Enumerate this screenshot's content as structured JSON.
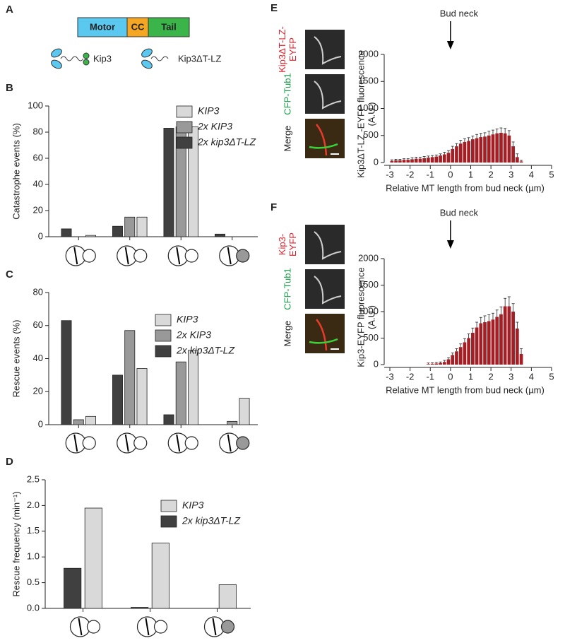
{
  "figure_a": {
    "panel": "A",
    "domains": [
      {
        "label": "Motor",
        "color": "#5bc8f0"
      },
      {
        "label": "CC",
        "color": "#f5a623"
      },
      {
        "label": "Tail",
        "color": "#3bb54a"
      }
    ],
    "constructs": [
      "Kip3",
      "Kip3ΔT-LZ"
    ]
  },
  "micrographs": [
    {
      "labels": [
        {
          "lines": [
            "Kip3ΔT-LZ-",
            "EYFP"
          ],
          "color": "#e0202a"
        },
        {
          "lines": [
            "CFP-Tub1"
          ],
          "color": "#1aa04a"
        },
        {
          "lines": [
            "Merge"
          ],
          "color": "#222222"
        }
      ]
    },
    {
      "labels": [
        {
          "lines": [
            "Kip3-",
            "EYFP"
          ],
          "color": "#e0202a"
        },
        {
          "lines": [
            "CFP-Tub1"
          ],
          "color": "#1aa04a"
        },
        {
          "lines": [
            "Merge"
          ],
          "color": "#222222"
        }
      ]
    }
  ],
  "chart_data": [
    {
      "type": "bar",
      "panel": "B",
      "ylabel": "Catastrophe events (%)",
      "categories": [
        null,
        null,
        null,
        null
      ],
      "series": [
        {
          "name": "KIP3",
          "color": "#d9d9d9",
          "values": [
            1,
            15,
            84,
            0
          ]
        },
        {
          "name": "2x KIP3",
          "color": "#999999",
          "values": [
            0,
            15,
            84,
            0
          ]
        },
        {
          "name": "2x kip3ΔT-LZ",
          "color": "#404040",
          "values": [
            6,
            8,
            83,
            2
          ]
        }
      ],
      "ylim": [
        0,
        100
      ],
      "yticks": [
        0,
        20,
        40,
        60,
        80,
        100
      ],
      "legend": "upper right"
    },
    {
      "type": "bar",
      "panel": "C",
      "ylabel": "Rescue events (%)",
      "categories": [
        null,
        null,
        null,
        null
      ],
      "series": [
        {
          "name": "KIP3",
          "color": "#d9d9d9",
          "values": [
            5,
            34,
            45,
            16
          ]
        },
        {
          "name": "2x KIP3",
          "color": "#999999",
          "values": [
            3,
            57,
            38,
            2
          ]
        },
        {
          "name": "2x kip3ΔT-LZ",
          "color": "#404040",
          "values": [
            63,
            30,
            6,
            0
          ]
        }
      ],
      "ylim": [
        0,
        80
      ],
      "yticks": [
        0,
        20,
        40,
        60,
        80
      ],
      "legend": "upper right"
    },
    {
      "type": "bar",
      "panel": "D",
      "ylabel": "Rescue frequency (min⁻¹)",
      "categories": [
        null,
        null,
        null
      ],
      "series": [
        {
          "name": "KIP3",
          "color": "#d9d9d9",
          "values": [
            1.95,
            1.27,
            0.46
          ]
        },
        {
          "name": "2x kip3ΔT-LZ",
          "color": "#404040",
          "values": [
            0.78,
            0.02,
            0
          ]
        }
      ],
      "ylim": [
        0,
        2.5
      ],
      "yticks": [
        {
          "value": 0,
          "label": "0.0"
        },
        0.5,
        {
          "value": 1,
          "label": "1.0"
        },
        1.5,
        {
          "value": 2,
          "label": "2.0"
        },
        2.5
      ],
      "legend": "upper right"
    },
    {
      "type": "errorbar",
      "panel": "E",
      "annotation": {
        "text": "Bud neck",
        "x": 0
      },
      "ylabel": [
        "Kip3ΔT-LZ -EYFP fluorescence",
        "(A.U.)"
      ],
      "xlabel": "Relative MT length from bud neck (µm)",
      "color": "#a31f26",
      "x": [
        -2.9,
        -2.7,
        -2.5,
        -2.3,
        -2.1,
        -1.9,
        -1.7,
        -1.5,
        -1.3,
        -1.1,
        -0.9,
        -0.7,
        -0.5,
        -0.3,
        -0.1,
        0.1,
        0.3,
        0.5,
        0.7,
        0.9,
        1.1,
        1.3,
        1.5,
        1.7,
        1.9,
        2.1,
        2.3,
        2.5,
        2.7,
        2.9,
        3.1,
        3.3,
        3.5
      ],
      "values": [
        30,
        40,
        40,
        50,
        50,
        60,
        70,
        70,
        80,
        90,
        100,
        110,
        130,
        150,
        180,
        250,
        300,
        350,
        380,
        400,
        430,
        450,
        470,
        480,
        500,
        520,
        540,
        550,
        540,
        500,
        300,
        100,
        20
      ],
      "errors": [
        20,
        20,
        20,
        20,
        20,
        30,
        30,
        30,
        30,
        30,
        30,
        30,
        30,
        40,
        40,
        50,
        50,
        60,
        60,
        60,
        60,
        70,
        70,
        70,
        80,
        80,
        80,
        90,
        90,
        90,
        80,
        60,
        20
      ],
      "xlim": [
        -3,
        5
      ],
      "xticks": [
        -3,
        -2,
        -1,
        0,
        1,
        2,
        3,
        4,
        5
      ],
      "ylim": [
        0,
        2000
      ],
      "yticks": [
        0,
        500,
        1000,
        1500,
        2000
      ]
    },
    {
      "type": "errorbar",
      "panel": "F",
      "annotation": {
        "text": "Bud neck",
        "x": 0
      },
      "ylabel": [
        "Kip3-EYFP fluorescence",
        "(A.U.)"
      ],
      "xlabel": "Relative MT length from bud neck (µm)",
      "color": "#a31f26",
      "x": [
        -1.1,
        -0.9,
        -0.7,
        -0.5,
        -0.3,
        -0.1,
        0.1,
        0.3,
        0.5,
        0.7,
        0.9,
        1.1,
        1.3,
        1.5,
        1.7,
        1.9,
        2.1,
        2.3,
        2.5,
        2.7,
        2.9,
        3.1,
        3.3,
        3.5
      ],
      "values": [
        10,
        15,
        20,
        30,
        50,
        100,
        180,
        250,
        330,
        420,
        500,
        600,
        700,
        780,
        800,
        820,
        850,
        900,
        950,
        1100,
        1100,
        1000,
        680,
        200
      ],
      "errors": [
        20,
        20,
        20,
        20,
        30,
        30,
        40,
        50,
        60,
        70,
        80,
        90,
        100,
        110,
        120,
        120,
        120,
        130,
        140,
        150,
        180,
        150,
        120,
        100
      ],
      "xlim": [
        -3,
        5
      ],
      "xticks": [
        -3,
        -2,
        -1,
        0,
        1,
        2,
        3,
        4,
        5
      ],
      "ylim": [
        0,
        2000
      ],
      "yticks": [
        0,
        500,
        1000,
        1500,
        2000
      ]
    }
  ]
}
